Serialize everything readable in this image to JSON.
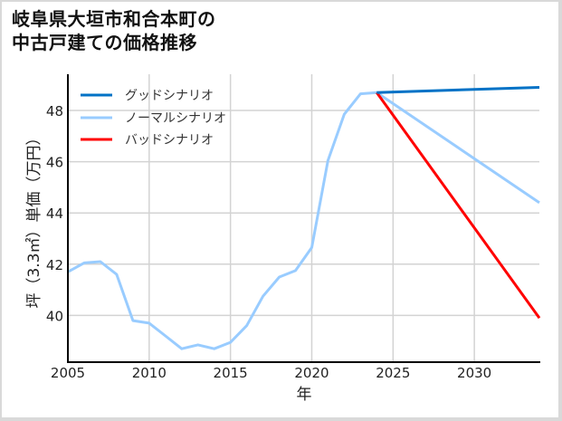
{
  "title": {
    "line1": "岐阜県大垣市和合本町の",
    "line2": "中古戸建ての価格推移"
  },
  "chart_data": {
    "type": "line",
    "title": "岐阜県大垣市和合本町の中古戸建ての価格推移",
    "xlabel": "年",
    "ylabel": "坪（3.3㎡）単価（万円）",
    "xlim": [
      2005,
      2034
    ],
    "ylim": [
      38.2,
      49.5
    ],
    "xticks": [
      2005,
      2010,
      2015,
      2020,
      2025,
      2030
    ],
    "yticks": [
      40,
      42,
      44,
      46,
      48
    ],
    "grid": true,
    "legend_position": "upper left",
    "series": [
      {
        "name": "グッドシナリオ",
        "color": "#0072c6",
        "x": [
          2024,
          2034
        ],
        "values": [
          48.7,
          48.9
        ]
      },
      {
        "name": "ノーマルシナリオ",
        "color": "#99ccff",
        "x": [
          2005,
          2006,
          2007,
          2008,
          2009,
          2010,
          2011,
          2012,
          2013,
          2014,
          2015,
          2016,
          2017,
          2018,
          2019,
          2020,
          2021,
          2022,
          2023,
          2024,
          2034
        ],
        "values": [
          41.7,
          42.05,
          42.1,
          41.6,
          39.8,
          39.7,
          39.2,
          38.7,
          38.85,
          38.7,
          38.95,
          39.6,
          40.75,
          41.5,
          41.75,
          42.65,
          46.05,
          47.85,
          48.65,
          48.7,
          44.4
        ]
      },
      {
        "name": "バッドシナリオ",
        "color": "#ff0000",
        "x": [
          2024,
          2034
        ],
        "values": [
          48.7,
          39.9
        ]
      }
    ]
  },
  "legend": {
    "good": "グッドシナリオ",
    "normal": "ノーマルシナリオ",
    "bad": "バッドシナリオ"
  },
  "axes": {
    "xlabel": "年",
    "ylabel": "坪（3.3㎡）単価（万円）",
    "xticks": [
      "2005",
      "2010",
      "2015",
      "2020",
      "2025",
      "2030"
    ],
    "yticks": [
      "40",
      "42",
      "44",
      "46",
      "48"
    ]
  }
}
